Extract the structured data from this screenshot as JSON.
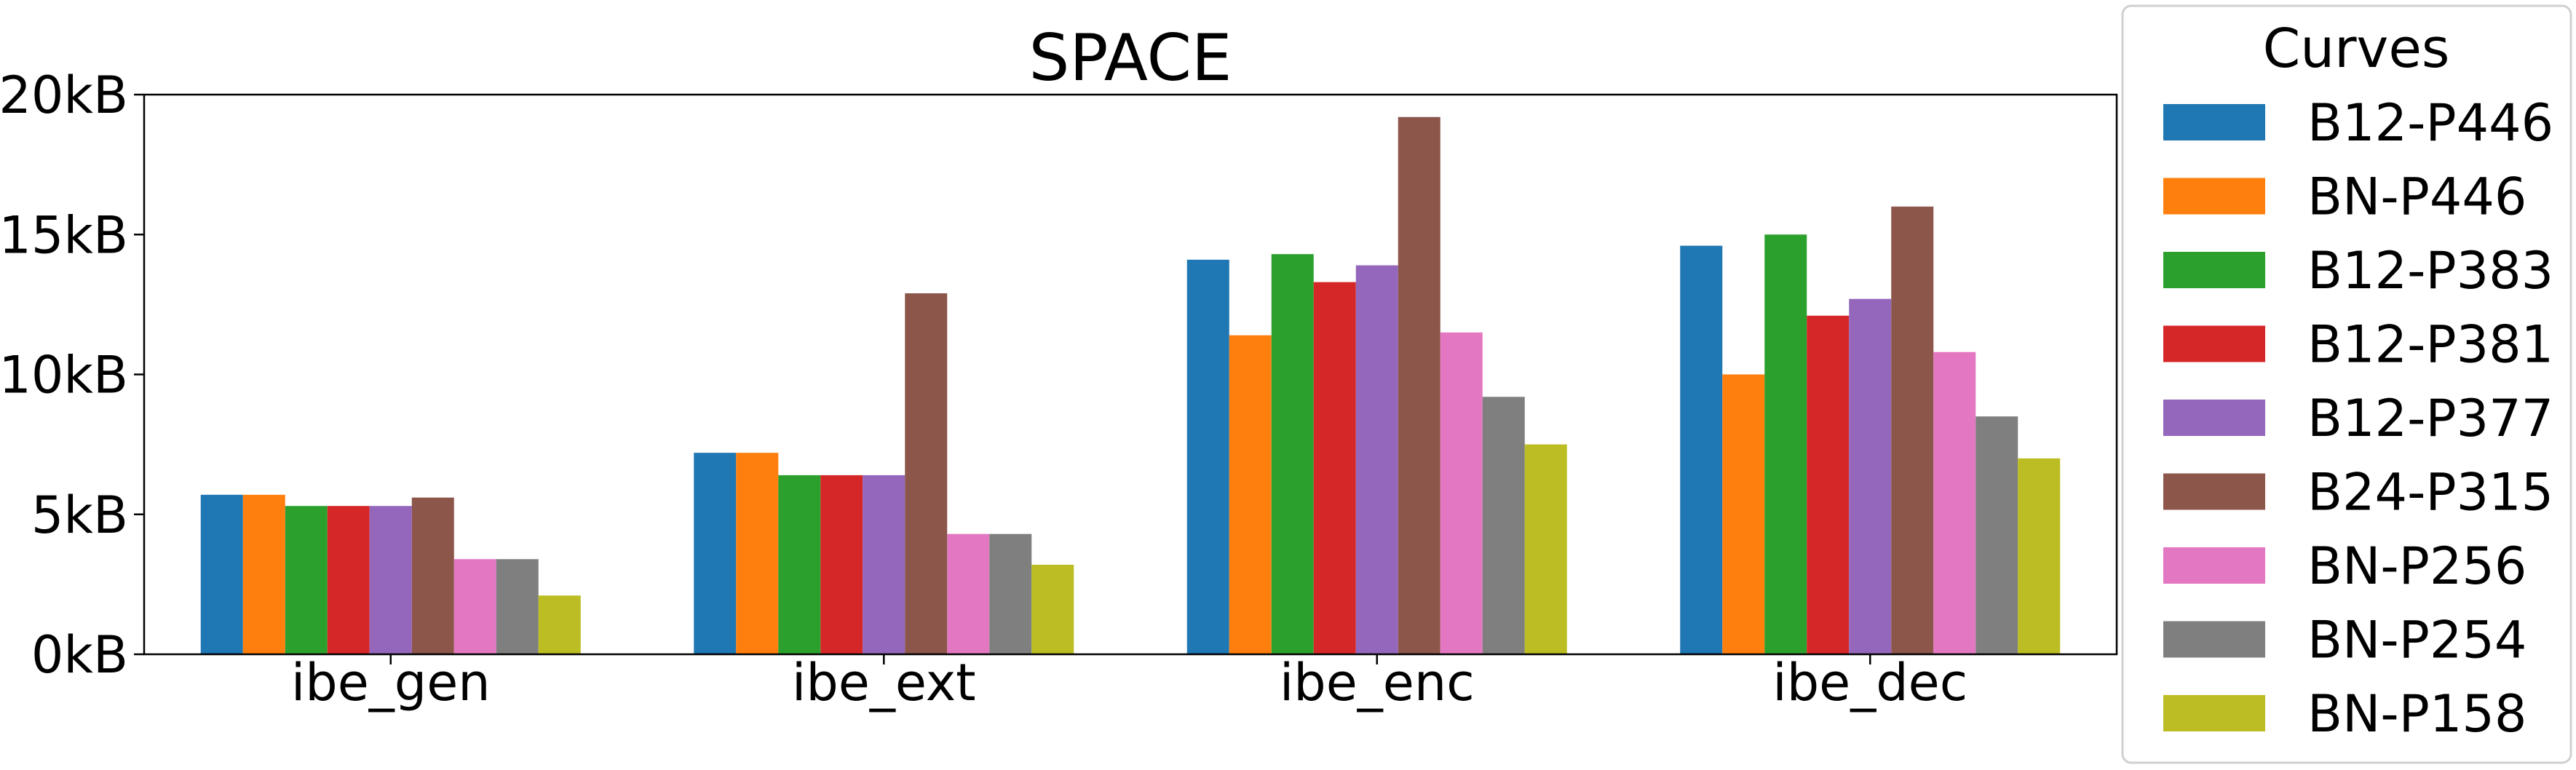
{
  "chart_data": {
    "type": "bar",
    "title": "SPACE",
    "xlabel": "",
    "ylabel": "",
    "y_unit": "kB",
    "ylim": [
      0,
      20
    ],
    "yticks": [
      0,
      5,
      10,
      15,
      20
    ],
    "ytick_labels": [
      "0kB",
      "5kB",
      "10kB",
      "15kB",
      "20kB"
    ],
    "grid": false,
    "legend_title": "Curves",
    "legend_placement": "outside-right",
    "categories": [
      "ibe_gen",
      "ibe_ext",
      "ibe_enc",
      "ibe_dec"
    ],
    "series": [
      {
        "name": "B12-P446",
        "color": "#1f77b4",
        "values": [
          5.7,
          7.2,
          14.1,
          14.6
        ]
      },
      {
        "name": "BN-P446",
        "color": "#ff7f0e",
        "values": [
          5.7,
          7.2,
          11.4,
          10.0
        ]
      },
      {
        "name": "B12-P383",
        "color": "#2ca02c",
        "values": [
          5.3,
          6.4,
          14.3,
          15.0
        ]
      },
      {
        "name": "B12-P381",
        "color": "#d62728",
        "values": [
          5.3,
          6.4,
          13.3,
          12.1
        ]
      },
      {
        "name": "B12-P377",
        "color": "#9467bd",
        "values": [
          5.3,
          6.4,
          13.9,
          12.7
        ]
      },
      {
        "name": "B24-P315",
        "color": "#8c564b",
        "values": [
          5.6,
          12.9,
          19.2,
          16.0
        ]
      },
      {
        "name": "BN-P256",
        "color": "#e377c2",
        "values": [
          3.4,
          4.3,
          11.5,
          10.8
        ]
      },
      {
        "name": "BN-P254",
        "color": "#7f7f7f",
        "values": [
          3.4,
          4.3,
          9.2,
          8.5
        ]
      },
      {
        "name": "BN-P158",
        "color": "#bcbd22",
        "values": [
          2.1,
          3.2,
          7.5,
          7.0
        ]
      }
    ]
  }
}
